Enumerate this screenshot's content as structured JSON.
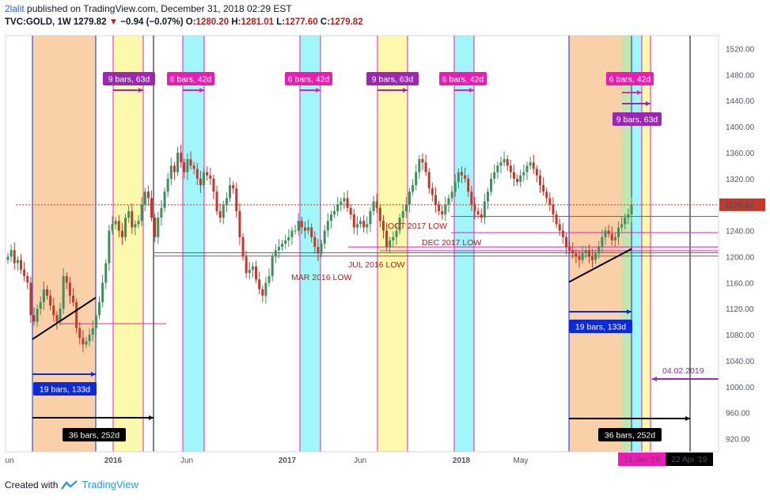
{
  "header": {
    "published_user": "2lalit",
    "published_text": "published on TradingView.com, December 31, 2018 02:29 EST",
    "symbol": "TVC:GOLD, 1W",
    "last": "1279.82",
    "change": "−0.94 (−0.07%)",
    "o_label": "O:",
    "o": "1280.20",
    "h_label": "H:",
    "h": "1281.01",
    "l_label": "L:",
    "l": "1277.60",
    "c_label": "C:",
    "c": "1279.82"
  },
  "footer": {
    "created_with": "Created with",
    "brand": "TradingView"
  },
  "chart_data": {
    "type": "candlestick",
    "ylim": [
      900,
      1540
    ],
    "y_ticks": [
      920,
      960,
      1000,
      1040,
      1080,
      1120,
      1160,
      1200,
      1240,
      1280,
      1320,
      1360,
      1400,
      1440,
      1480,
      1520
    ],
    "x_ticks": [
      {
        "label": "un",
        "x": 12
      },
      {
        "label": "2016",
        "x": 143
      },
      {
        "label": "Jun",
        "x": 236
      },
      {
        "label": "2017",
        "x": 363
      },
      {
        "label": "Jun",
        "x": 455
      },
      {
        "label": "2018",
        "x": 583
      },
      {
        "label": "May",
        "x": 658
      }
    ],
    "last_price": {
      "value": 1279.82,
      "label": "1279.82"
    },
    "closes": [
      1200,
      1210,
      1190,
      1195,
      1180,
      1170,
      1160,
      1110,
      1100,
      1120,
      1130,
      1150,
      1140,
      1125,
      1110,
      1100,
      1120,
      1170,
      1160,
      1140,
      1130,
      1090,
      1075,
      1065,
      1070,
      1080,
      1090,
      1110,
      1130,
      1160,
      1190,
      1240,
      1250,
      1255,
      1240,
      1230,
      1260,
      1270,
      1245,
      1250,
      1255,
      1280,
      1300,
      1290,
      1260,
      1230,
      1260,
      1275,
      1300,
      1320,
      1340,
      1330,
      1360,
      1345,
      1330,
      1350,
      1340,
      1335,
      1320,
      1310,
      1330,
      1325,
      1320,
      1300,
      1270,
      1260,
      1280,
      1290,
      1310,
      1305,
      1270,
      1230,
      1200,
      1175,
      1180,
      1185,
      1165,
      1150,
      1140,
      1160,
      1170,
      1200,
      1210,
      1215,
      1220,
      1225,
      1230,
      1240,
      1240,
      1255,
      1245,
      1240,
      1245,
      1230,
      1215,
      1205,
      1220,
      1240,
      1255,
      1265,
      1270,
      1280,
      1285,
      1290,
      1275,
      1265,
      1245,
      1250,
      1255,
      1245,
      1250,
      1270,
      1285,
      1275,
      1255,
      1240,
      1215,
      1225,
      1230,
      1240,
      1260,
      1270,
      1280,
      1300,
      1310,
      1330,
      1350,
      1345,
      1330,
      1305,
      1295,
      1280,
      1270,
      1265,
      1280,
      1290,
      1300,
      1315,
      1330,
      1325,
      1320,
      1300,
      1280,
      1270,
      1265,
      1260,
      1285,
      1300,
      1320,
      1330,
      1340,
      1345,
      1350,
      1340,
      1330,
      1320,
      1315,
      1325,
      1330,
      1340,
      1345,
      1335,
      1325,
      1310,
      1300,
      1290,
      1280,
      1265,
      1250,
      1240,
      1230,
      1215,
      1210,
      1205,
      1200,
      1195,
      1205,
      1210,
      1200,
      1195,
      1205,
      1215,
      1230,
      1240,
      1235,
      1225,
      1230,
      1245,
      1250,
      1260,
      1265,
      1280
    ],
    "cycle_labels": [
      {
        "text": "9 bars, 63d",
        "color": "#9c27b0"
      },
      {
        "text": "6 bars, 42d",
        "color": "#e91eb0"
      },
      {
        "text": "6 bars, 42d",
        "color": "#e91eb0"
      },
      {
        "text": "9 bars, 63d",
        "color": "#9c27b0"
      },
      {
        "text": "6 bars, 42d",
        "color": "#e91eb0"
      },
      {
        "text": "6 bars, 42d",
        "color": "#e91eb0"
      },
      {
        "text": "9 bars, 63d",
        "color": "#9c27b0"
      },
      {
        "text": "19 bars, 133d",
        "color": "#0d2bd4"
      },
      {
        "text": "19 bars, 133d",
        "color": "#0d2bd4"
      },
      {
        "text": "36 bars, 252d",
        "color": "#000000"
      },
      {
        "text": "36 bars, 252d",
        "color": "#000000"
      }
    ],
    "annotations": [
      {
        "text": "MAR 2016 LOW",
        "color": "#b71c1c"
      },
      {
        "text": "JUL 2016 LOW",
        "color": "#b71c1c"
      },
      {
        "text": "OCT 2017 LOW",
        "color": "#b71c1c"
      },
      {
        "text": "DEC 2017 LOW",
        "color": "#b71c1c"
      },
      {
        "text": "04.02.2019",
        "color": "#9c27b0"
      }
    ],
    "date_markers": [
      {
        "text": "14 Jan '19",
        "bg": "#e91eb0"
      },
      {
        "text": "22 Apr '19",
        "bg": "#000000"
      }
    ],
    "colors": {
      "up": "#3d8f5d",
      "down": "#c0392b",
      "orange": "#f9c89a",
      "yellow": "#fbf89e",
      "cyan": "#8ff5f7",
      "green": "#b9e0a0",
      "magenta": "#e91eb0",
      "purple": "#9c27b0",
      "blue": "#0d2bd4"
    }
  }
}
